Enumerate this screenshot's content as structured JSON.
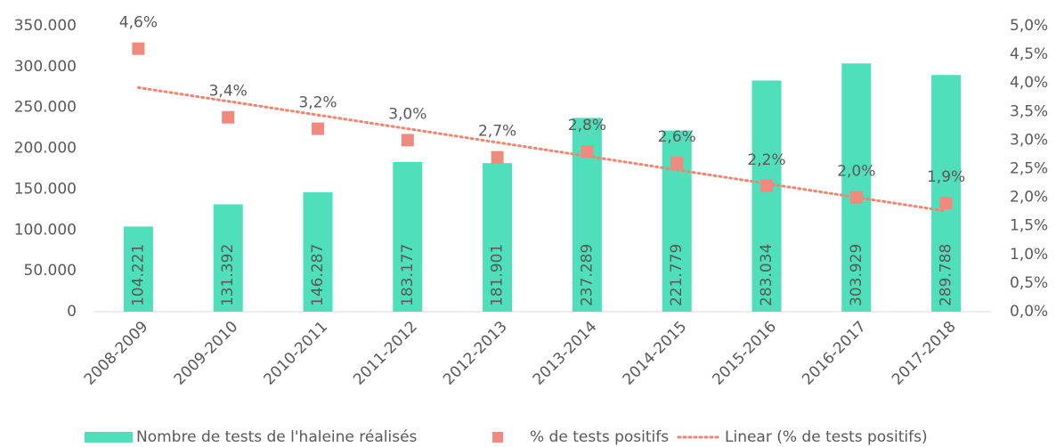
{
  "chart_data": {
    "type": "combo",
    "categories": [
      "2008-2009",
      "2009-2010",
      "2010-2011",
      "2011-2012",
      "2012-2013",
      "2013-2014",
      "2014-2015",
      "2015-2016",
      "2016-2017",
      "2017-2018"
    ],
    "series": [
      {
        "name": "Nombre de tests de l'haleine réalisés",
        "type": "bar",
        "color": "#4fdfbb",
        "values": [
          104221,
          131392,
          146287,
          183177,
          181901,
          237289,
          221779,
          283034,
          303929,
          289788
        ],
        "value_labels": [
          "104.221",
          "131.392",
          "146.287",
          "183.177",
          "181.901",
          "237.289",
          "221.779",
          "283.034",
          "303.929",
          "289.788"
        ]
      },
      {
        "name": "% de tests positifs",
        "type": "scatter",
        "axis": "y2",
        "color": "#f08a7e",
        "values": [
          4.6,
          3.4,
          3.2,
          3.0,
          2.7,
          2.8,
          2.6,
          2.2,
          2.0,
          1.9
        ],
        "value_labels": [
          "4,6%",
          "3,4%",
          "3,2%",
          "3,0%",
          "2,7%",
          "2,8%",
          "2,6%",
          "2,2%",
          "2,0%",
          "1,9%"
        ]
      },
      {
        "name": "Linear (% de tests positifs)",
        "type": "line",
        "axis": "y2",
        "color": "#f4846f",
        "values": [
          3.92,
          3.68,
          3.44,
          3.2,
          2.96,
          2.72,
          2.48,
          2.24,
          2.0,
          1.76
        ]
      }
    ],
    "ylim": [
      0,
      350000
    ],
    "yticks": [
      0,
      {
        "value": 50000,
        "label": "50.000"
      },
      {
        "value": 100000,
        "label": "100.000"
      },
      {
        "value": 150000,
        "label": "150.000"
      },
      {
        "value": 200000,
        "label": "200.000"
      },
      {
        "value": 250000,
        "label": "250.000"
      },
      {
        "value": 300000,
        "label": "300.000"
      },
      {
        "value": 350000,
        "label": "350.000"
      }
    ],
    "y2lim": [
      0,
      5
    ],
    "y2ticks": [
      {
        "value": 0,
        "label": "0,0%"
      },
      {
        "value": 0.5,
        "label": "0,5%"
      },
      {
        "value": 1,
        "label": "1,0%"
      },
      {
        "value": 1.5,
        "label": "1,5%"
      },
      {
        "value": 2,
        "label": "2,0%"
      },
      {
        "value": 2.5,
        "label": "2,5%"
      },
      {
        "value": 3,
        "label": "3,0%"
      },
      {
        "value": 3.5,
        "label": "3,5%"
      },
      {
        "value": 4,
        "label": "4,0%"
      },
      {
        "value": 4.5,
        "label": "4,5%"
      },
      {
        "value": 5,
        "label": "5,0%"
      }
    ],
    "legend": "bottom"
  }
}
